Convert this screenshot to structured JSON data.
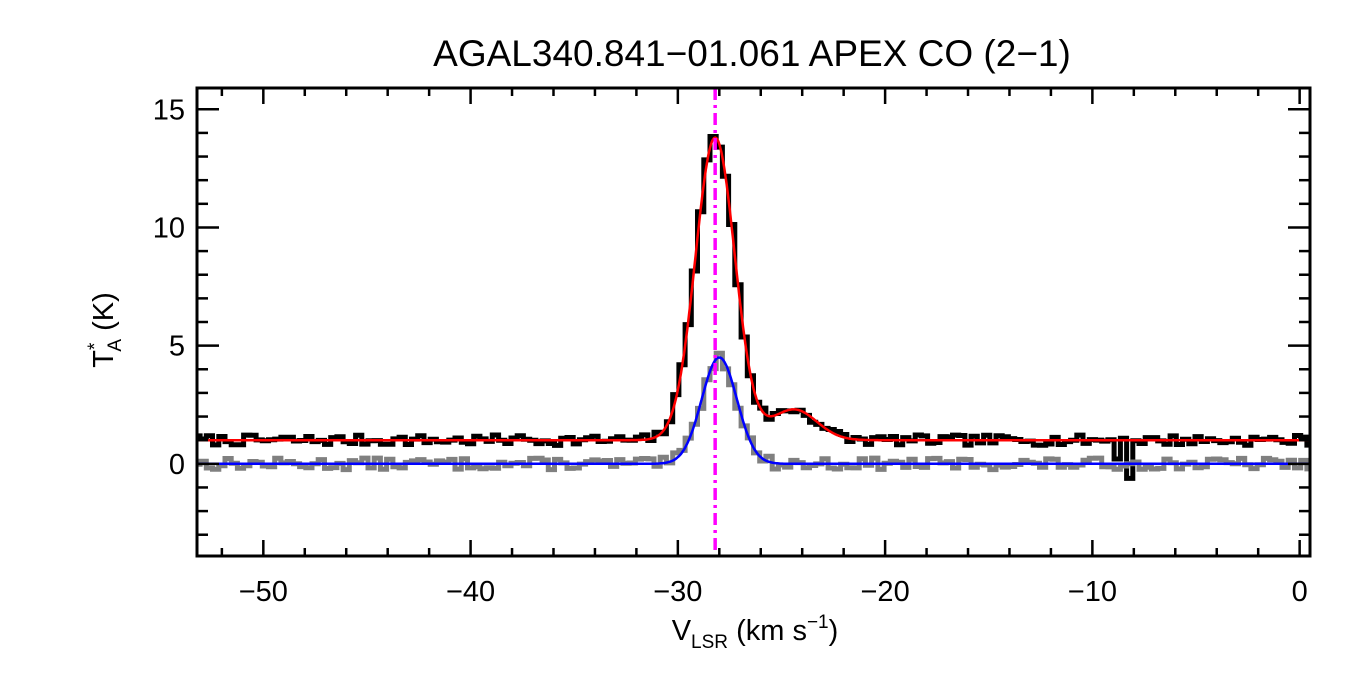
{
  "chart_data": {
    "type": "line",
    "title": "AGAL340.841−01.061   APEX CO (2−1)",
    "xlabel": {
      "main": "V",
      "sub": "LSR",
      "tail": " (km s",
      "sup": "−1",
      "close": ")"
    },
    "ylabel": {
      "main": "T",
      "sup": "*",
      "sub": "A",
      "tail": " (K)"
    },
    "xlim": [
      -53.2,
      0.5
    ],
    "ylim": [
      -3.9,
      15.9
    ],
    "x_ticks": [
      -50,
      -40,
      -30,
      -20,
      -10,
      0
    ],
    "x_tick_labels": [
      "−50",
      "−40",
      "−30",
      "−20",
      "−10",
      "0"
    ],
    "y_ticks": [
      0,
      5,
      10,
      15
    ],
    "y_tick_labels": [
      "0",
      "5",
      "10",
      "15"
    ],
    "x_minor_step": 2,
    "y_minor_step": 1,
    "grid": false,
    "vline": {
      "x": -28.2,
      "color": "#ff00ff",
      "style": "dash-dot"
    },
    "series": [
      {
        "kind": "spectrum",
        "color": "#000000",
        "base": 1.0,
        "noise": 0.22,
        "seed": 7,
        "components": [
          {
            "amp": 12.8,
            "center": -28.2,
            "sigma": 0.95
          },
          {
            "amp": 1.3,
            "center": -24.4,
            "sigma": 1.1
          }
        ],
        "features": [
          {
            "x": -38.0,
            "dy": 0.2
          },
          {
            "x": -13.0,
            "dy": 0.1
          },
          {
            "x": -8.2,
            "dy": -1.5
          },
          {
            "x": -8.8,
            "dy": -0.6
          }
        ]
      },
      {
        "kind": "spectrum",
        "color": "#808080",
        "base": 0.0,
        "noise": 0.25,
        "seed": 13,
        "components": [
          {
            "amp": 4.5,
            "center": -28.0,
            "sigma": 0.85
          }
        ],
        "features": []
      },
      {
        "kind": "fit",
        "color": "#ff0000",
        "base": 1.0,
        "components": [
          {
            "amp": 12.8,
            "center": -28.2,
            "sigma": 0.95
          },
          {
            "amp": 1.3,
            "center": -24.4,
            "sigma": 1.1
          }
        ]
      },
      {
        "kind": "fit",
        "color": "#0000ff",
        "base": 0.0,
        "components": [
          {
            "amp": 4.5,
            "center": -28.0,
            "sigma": 0.85
          }
        ]
      }
    ]
  }
}
